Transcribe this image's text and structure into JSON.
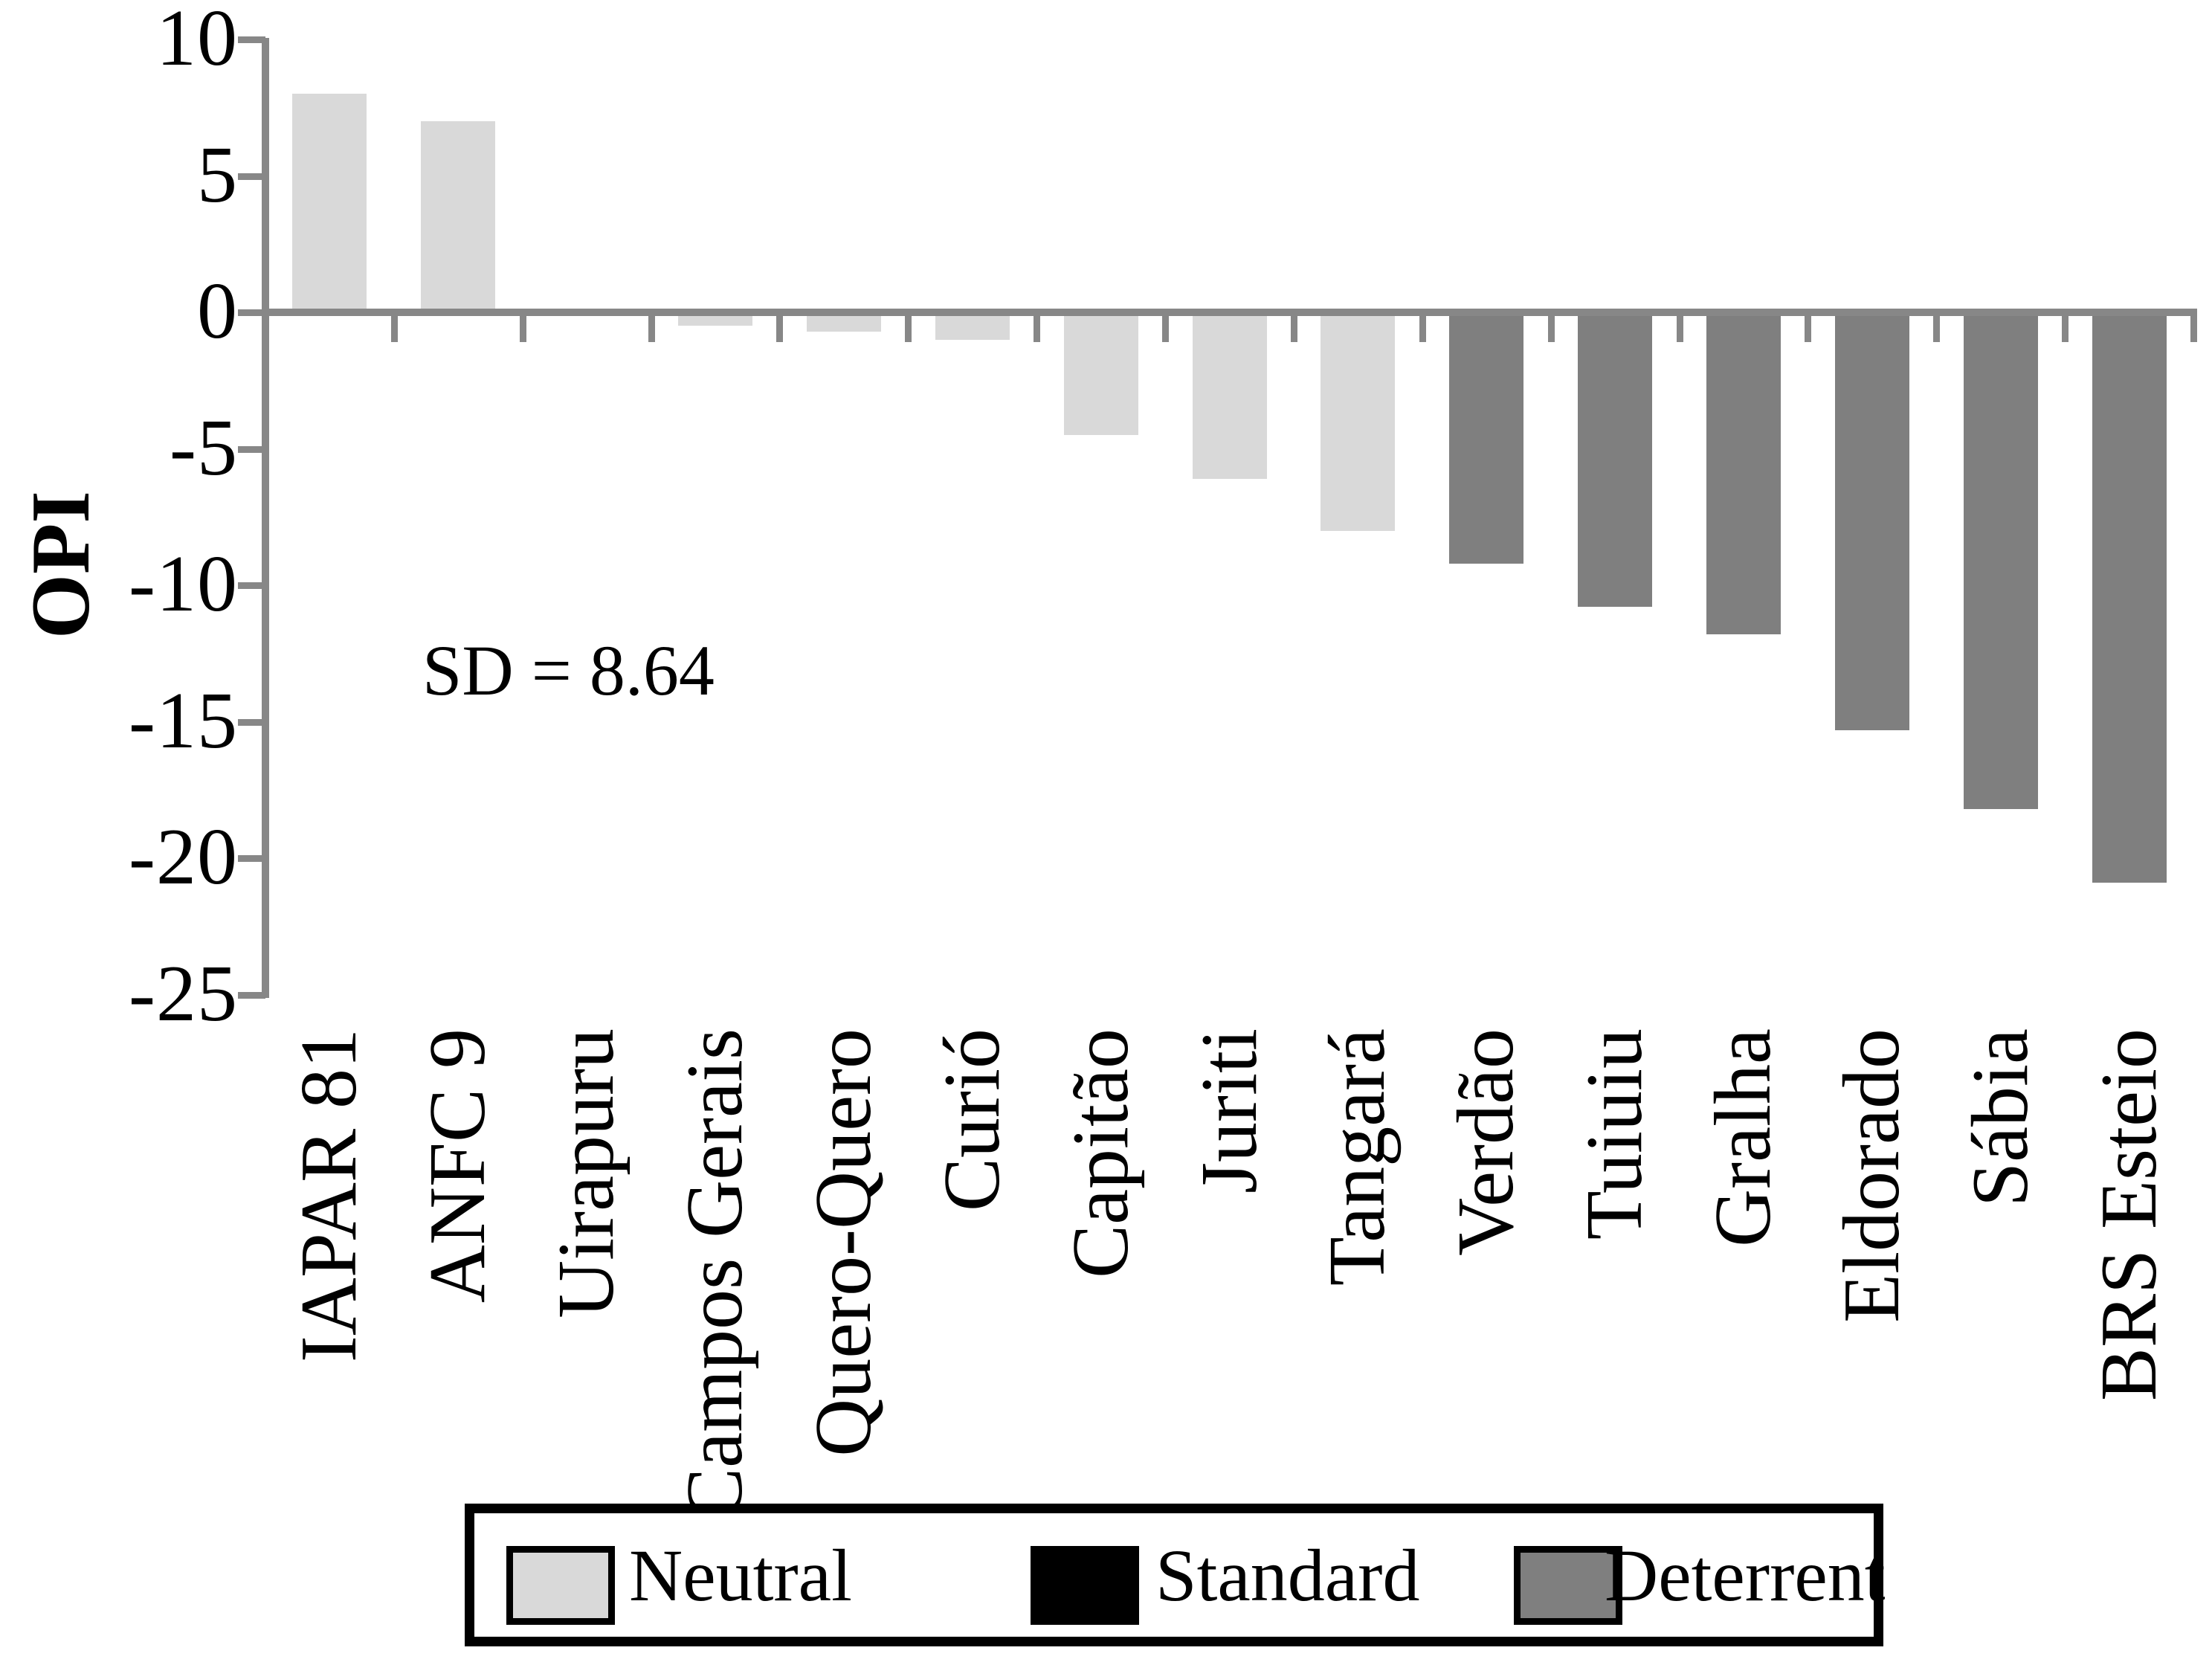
{
  "chart_data": {
    "type": "bar",
    "title": "",
    "xlabel": "",
    "ylabel": "OPI",
    "ylim": [
      -25,
      10
    ],
    "y_ticks": [
      10,
      5,
      0,
      -5,
      -10,
      -15,
      -20,
      -25
    ],
    "grid": false,
    "annotation": "SD = 8.64",
    "categories": [
      "IAPAR 81",
      "ANFC 9",
      "Uirapuru",
      "Campos Gerais",
      "Quero-Quero",
      "Curió",
      "Capitão",
      "Juriti",
      "Tangará",
      "Verdão",
      "Tuiuiu",
      "Gralha",
      "Eldorado",
      "Sábia",
      "BRS Esteio"
    ],
    "values": [
      8.0,
      7.0,
      0,
      -0.5,
      -0.7,
      -1.0,
      -4.5,
      -6.1,
      -8.0,
      -9.2,
      -10.8,
      -11.8,
      -15.3,
      -18.2,
      -20.9
    ],
    "groups": [
      "neutral",
      "neutral",
      "neutral",
      "neutral",
      "neutral",
      "neutral",
      "neutral",
      "neutral",
      "neutral",
      "deterrent",
      "deterrent",
      "deterrent",
      "deterrent",
      "deterrent",
      "deterrent"
    ],
    "legend_position": "bottom",
    "legend": [
      {
        "label": "Neutral",
        "key": "neutral"
      },
      {
        "label": "Standard",
        "key": "standard"
      },
      {
        "label": "Deterrent",
        "key": "deterrent"
      }
    ]
  },
  "colors": {
    "neutral": "#d9d9d9",
    "standard": "#000000",
    "deterrent": "#7f7f7f",
    "axis": "#878787",
    "text": "#000000",
    "background": "#ffffff"
  }
}
